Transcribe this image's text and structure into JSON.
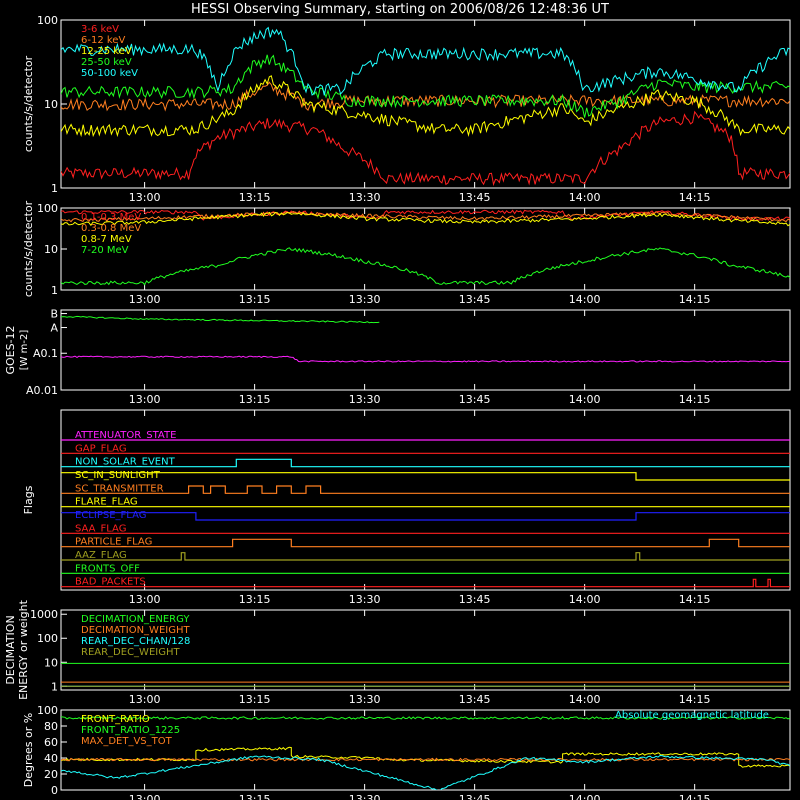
{
  "title": "HESSI Observing Summary, starting on 2006/08/26 12:48:36 UT",
  "time_axis": {
    "start": "12:48:36",
    "end": "14:28:00",
    "ticks": [
      "13:00",
      "13:15",
      "13:30",
      "13:45",
      "14:00",
      "14:15"
    ]
  },
  "colors": {
    "red": "#ff2020",
    "orange": "#ff7f20",
    "yellow": "#ffff00",
    "green": "#20ff20",
    "cyan": "#20ffff",
    "magenta": "#ff20ff",
    "blue": "#2020ff",
    "olive": "#9f9f20",
    "white": "#ffffff"
  },
  "chart_data": [
    {
      "type": "line",
      "panel": "low_energy",
      "ylabel": "counts/s/detector",
      "yscale": "log",
      "ylim": [
        1,
        100
      ],
      "yticks": [
        "1",
        "10",
        "100"
      ],
      "legend": [
        "3-6 keV",
        "6-12 keV",
        "12-25 keV",
        "25-50 keV",
        "50-100 keV"
      ],
      "legend_colors": [
        "#ff2020",
        "#ff7f20",
        "#ffff00",
        "#20ff20",
        "#20ffff"
      ],
      "legend_placement": "top-left",
      "series": [
        {
          "name": "3-6 keV",
          "color": "#ff2020",
          "x": [
            "12:48:36",
            "12:58",
            "13:06",
            "13:07",
            "13:10",
            "13:17",
            "13:20",
            "13:23",
            "13:27",
            "13:33",
            "13:40",
            "13:50",
            "14:00",
            "14:05",
            "14:10",
            "14:15",
            "14:20",
            "14:21",
            "14:28"
          ],
          "values": [
            1.5,
            1.5,
            1.5,
            2.5,
            4,
            6,
            5.5,
            5,
            3,
            1.3,
            1.3,
            1.3,
            1.3,
            3,
            6,
            7,
            4,
            1.5,
            1.5
          ]
        },
        {
          "name": "6-12 keV",
          "color": "#ff7f20",
          "x": [
            "12:48:36",
            "13:05",
            "13:12",
            "13:15",
            "13:17",
            "13:22",
            "13:28",
            "13:40",
            "13:50",
            "14:00",
            "14:10",
            "14:21",
            "14:28"
          ],
          "values": [
            10,
            10,
            10,
            14,
            16,
            10,
            11,
            11,
            11,
            11,
            11,
            11,
            11
          ]
        },
        {
          "name": "12-25 keV",
          "color": "#ffff00",
          "x": [
            "12:48:36",
            "13:07",
            "13:12",
            "13:15",
            "13:17",
            "13:22",
            "13:28",
            "13:35",
            "13:40",
            "13:45",
            "13:52",
            "13:57",
            "14:00",
            "14:05",
            "14:10",
            "14:15",
            "14:21",
            "14:28"
          ],
          "values": [
            5,
            5,
            8,
            15,
            20,
            10,
            8,
            6,
            5,
            5,
            7,
            9,
            6,
            9,
            13,
            11,
            5,
            5
          ]
        },
        {
          "name": "25-50 keV",
          "color": "#20ff20",
          "x": [
            "12:48:36",
            "13:07",
            "13:12",
            "13:15",
            "13:17",
            "13:22",
            "13:28",
            "13:35",
            "13:45",
            "13:52",
            "13:57",
            "14:00",
            "14:05",
            "14:10",
            "14:15",
            "14:21",
            "14:28"
          ],
          "values": [
            14,
            14,
            15,
            30,
            35,
            15,
            11,
            11,
            11,
            11,
            11,
            8,
            11,
            18,
            16,
            16,
            16
          ]
        },
        {
          "name": "50-100 keV",
          "color": "#20ffff",
          "x": [
            "12:48:36",
            "13:07",
            "13:10",
            "13:13",
            "13:16",
            "13:18",
            "13:20",
            "13:22",
            "13:27",
            "13:33",
            "13:40",
            "13:50",
            "13:57",
            "14:00",
            "14:05",
            "14:10",
            "14:15",
            "14:21",
            "14:28"
          ],
          "values": [
            45,
            45,
            15,
            50,
            70,
            75,
            40,
            15,
            15,
            40,
            40,
            40,
            40,
            15,
            20,
            25,
            20,
            15,
            45
          ]
        }
      ]
    },
    {
      "type": "line",
      "panel": "high_energy",
      "ylabel": "counts/s/detector",
      "yscale": "log",
      "ylim": [
        1,
        100
      ],
      "yticks": [
        "1",
        "10",
        "100"
      ],
      "legend": [
        "0.1-0.3 MeV",
        "0.3-0.8 MeV",
        "0.8-7 MeV",
        "7-20 MeV"
      ],
      "legend_colors": [
        "#ff2020",
        "#ff7f20",
        "#ffff00",
        "#20ff20"
      ],
      "legend_placement": "top-left",
      "series": [
        {
          "name": "0.1-0.3 MeV",
          "color": "#ff2020",
          "x": [
            "12:48:36",
            "13:07",
            "13:08",
            "13:20",
            "13:32",
            "13:33",
            "13:57",
            "13:58",
            "14:10",
            "14:21",
            "14:28"
          ],
          "values": [
            80,
            80,
            55,
            80,
            55,
            80,
            80,
            55,
            80,
            55,
            55
          ]
        },
        {
          "name": "0.3-0.8 MeV",
          "color": "#ff7f20",
          "x": [
            "12:48:36",
            "13:00",
            "13:10",
            "13:20",
            "13:30",
            "13:45",
            "14:00",
            "14:10",
            "14:20",
            "14:28"
          ],
          "values": [
            50,
            55,
            65,
            75,
            65,
            55,
            65,
            75,
            60,
            50
          ]
        },
        {
          "name": "0.8-7 MeV",
          "color": "#ffff00",
          "x": [
            "12:48:36",
            "13:00",
            "13:10",
            "13:20",
            "13:30",
            "13:45",
            "14:00",
            "14:10",
            "14:20",
            "14:28"
          ],
          "values": [
            40,
            45,
            60,
            75,
            55,
            45,
            55,
            70,
            50,
            40
          ]
        },
        {
          "name": "7-20 MeV",
          "color": "#20ff20",
          "x": [
            "12:48:36",
            "13:00",
            "13:10",
            "13:20",
            "13:30",
            "13:40",
            "13:50",
            "14:00",
            "14:10",
            "14:20",
            "14:28"
          ],
          "values": [
            1.5,
            1.5,
            4,
            10,
            5,
            1.5,
            1.5,
            5,
            10,
            4,
            2
          ]
        }
      ]
    },
    {
      "type": "line",
      "panel": "goes",
      "ylabel": "GOES-12 [W m-2]",
      "yscale": "log",
      "yticks": [
        "A0.01",
        "A0.1",
        "A",
        "B"
      ],
      "series": [
        {
          "name": "long",
          "color": "#20ff20",
          "x": [
            "12:48:36",
            "13:00",
            "13:20",
            "13:32"
          ],
          "values": [
            1.0,
            0.85,
            0.75,
            0.7
          ]
        },
        {
          "name": "short",
          "color": "#ff20ff",
          "x": [
            "12:48:36",
            "13:20",
            "13:21",
            "14:28"
          ],
          "values": [
            0.08,
            0.08,
            0.06,
            0.06
          ]
        }
      ]
    },
    {
      "type": "line",
      "panel": "flags",
      "ylabel": "Flags",
      "series": [
        {
          "name": "ATTENUATOR_STATE",
          "color": "#ff20ff",
          "x": [
            "12:48:36",
            "14:28"
          ],
          "values": [
            0,
            0
          ]
        },
        {
          "name": "GAP_FLAG",
          "color": "#ff2020",
          "x": [
            "12:48:36",
            "14:28"
          ],
          "values": [
            0,
            0
          ]
        },
        {
          "name": "NON_SOLAR_EVENT",
          "color": "#20ffff",
          "x": [
            "12:48:36",
            "13:12:30",
            "13:12:30",
            "13:20",
            "13:20",
            "14:28"
          ],
          "values": [
            0,
            0,
            1,
            1,
            0,
            0
          ]
        },
        {
          "name": "SC_IN_SUNLIGHT",
          "color": "#ffff00",
          "x": [
            "12:48:36",
            "14:07",
            "14:07",
            "14:28"
          ],
          "values": [
            1,
            1,
            0,
            0
          ]
        },
        {
          "name": "SC_TRANSMITTER",
          "color": "#ff7f20",
          "x": [
            "12:48:36",
            "13:06",
            "13:06",
            "13:08",
            "13:08",
            "13:09",
            "13:09",
            "13:11",
            "13:11",
            "13:14",
            "13:14",
            "13:16",
            "13:16",
            "13:18",
            "13:18",
            "13:20",
            "13:20",
            "13:22",
            "13:22",
            "13:24",
            "13:24",
            "14:28"
          ],
          "values": [
            0,
            0,
            1,
            1,
            0,
            0,
            1,
            1,
            0,
            0,
            1,
            1,
            0,
            0,
            1,
            1,
            0,
            0,
            1,
            1,
            0,
            0
          ]
        },
        {
          "name": "FLARE_FLAG",
          "color": "#ffff00",
          "x": [
            "12:48:36",
            "14:28"
          ],
          "values": [
            0,
            0
          ]
        },
        {
          "name": "ECLIPSE_FLAG",
          "color": "#2020ff",
          "x": [
            "12:48:36",
            "13:07",
            "13:07",
            "14:07",
            "14:07",
            "14:28"
          ],
          "values": [
            1,
            1,
            0,
            0,
            1,
            1
          ]
        },
        {
          "name": "SAA_FLAG",
          "color": "#ff2020",
          "x": [
            "12:48:36",
            "14:28"
          ],
          "values": [
            0,
            0
          ]
        },
        {
          "name": "PARTICLE_FLAG",
          "color": "#ff7f20",
          "x": [
            "12:48:36",
            "13:12",
            "13:12",
            "13:20",
            "13:20",
            "14:17",
            "14:17",
            "14:21",
            "14:21",
            "14:28"
          ],
          "values": [
            0,
            0,
            1,
            1,
            0,
            0,
            1,
            1,
            0,
            0
          ]
        },
        {
          "name": "AAZ_FLAG",
          "color": "#9f9f20",
          "x": [
            "12:48:36",
            "13:05",
            "13:05",
            "13:05:30",
            "13:05:30",
            "14:07",
            "14:07",
            "14:07:30",
            "14:07:30",
            "14:28"
          ],
          "values": [
            0,
            0,
            1,
            1,
            0,
            0,
            1,
            1,
            0,
            0
          ]
        },
        {
          "name": "FRONTS_OFF",
          "color": "#20ff20",
          "x": [
            "12:48:36",
            "14:28"
          ],
          "values": [
            0,
            0
          ]
        },
        {
          "name": "BAD_PACKETS",
          "color": "#ff2020",
          "x": [
            "12:48:36",
            "14:23",
            "14:23",
            "14:23:20",
            "14:23:20",
            "14:25",
            "14:25",
            "14:25:20",
            "14:25:20",
            "14:28"
          ],
          "values": [
            0,
            0,
            1,
            1,
            0,
            0,
            1,
            1,
            0,
            0
          ]
        }
      ]
    },
    {
      "type": "line",
      "panel": "decimation",
      "ylabel": "DECIMATION ENERGY or weight",
      "yscale": "log",
      "ylim": [
        1,
        1000
      ],
      "yticks": [
        "1",
        "10",
        "100",
        "1000"
      ],
      "legend": [
        "DECIMATION_ENERGY",
        "DECIMATION_WEIGHT",
        "REAR_DEC_CHAN/128",
        "REAR_DEC_WEIGHT"
      ],
      "legend_colors": [
        "#20ff20",
        "#ff7f20",
        "#20ffff",
        "#9f9f20"
      ],
      "legend_placement": "top-left",
      "series": [
        {
          "name": "DECIMATION_ENERGY",
          "color": "#20ff20",
          "x": [
            "12:48:36",
            "14:28"
          ],
          "values": [
            9,
            9
          ]
        },
        {
          "name": "DECIMATION_WEIGHT",
          "color": "#ff7f20",
          "x": [
            "12:48:36",
            "13:07",
            "13:07",
            "13:32",
            "13:32",
            "13:57",
            "13:57",
            "14:21",
            "14:21",
            "14:28"
          ],
          "values": [
            1.5,
            1.5,
            1.5,
            1.5,
            1.5,
            1.5,
            1.5,
            1.5,
            1.5,
            1.5
          ]
        },
        {
          "name": "REAR_DEC_CHAN/128",
          "color": "#20ffff",
          "x": [
            "12:48:36",
            "14:28"
          ],
          "values": [
            1,
            1
          ]
        },
        {
          "name": "REAR_DEC_WEIGHT",
          "color": "#9f9f20",
          "x": [
            "12:48:36",
            "14:28"
          ],
          "values": [
            1,
            1
          ]
        }
      ]
    },
    {
      "type": "line",
      "panel": "ratios",
      "ylabel": "Degrees or %",
      "ylim": [
        0,
        100
      ],
      "yticks": [
        "0",
        "20",
        "40",
        "60",
        "80",
        "100"
      ],
      "legend": [
        "FRONT_RATIO",
        "FRONT_RATIO_1225",
        "MAX_DET_VS_TOT",
        "Absolute geomagnetic latitude"
      ],
      "legend_colors": [
        "#ffff00",
        "#20ff20",
        "#ff7f20",
        "#20ffff"
      ],
      "legend_placement": "top-left",
      "series": [
        {
          "name": "FRONT_RATIO",
          "color": "#ffff00",
          "x": [
            "12:48:36",
            "13:07",
            "13:07",
            "13:20",
            "13:20",
            "13:32",
            "13:32",
            "13:57",
            "13:57",
            "14:21",
            "14:21",
            "14:28"
          ],
          "values": [
            38,
            38,
            50,
            52,
            42,
            40,
            38,
            35,
            45,
            45,
            30,
            30
          ]
        },
        {
          "name": "FRONT_RATIO_1225",
          "color": "#20ff20",
          "x": [
            "12:48:36",
            "13:07",
            "13:07",
            "13:32",
            "13:32",
            "13:57",
            "13:57",
            "14:21",
            "14:21",
            "14:28"
          ],
          "values": [
            90,
            90,
            90,
            90,
            90,
            90,
            90,
            90,
            90,
            90
          ]
        },
        {
          "name": "MAX_DET_VS_TOT",
          "color": "#ff7f20",
          "x": [
            "12:48:36",
            "14:28"
          ],
          "values": [
            38,
            38
          ]
        },
        {
          "name": "Absolute geomagnetic latitude",
          "color": "#20ffff",
          "x": [
            "12:48:36",
            "12:56",
            "13:15",
            "13:24",
            "13:40",
            "13:52",
            "14:00",
            "14:10",
            "14:25",
            "14:28"
          ],
          "values": [
            25,
            15,
            42,
            38,
            0,
            40,
            35,
            42,
            38,
            30
          ]
        }
      ]
    }
  ]
}
